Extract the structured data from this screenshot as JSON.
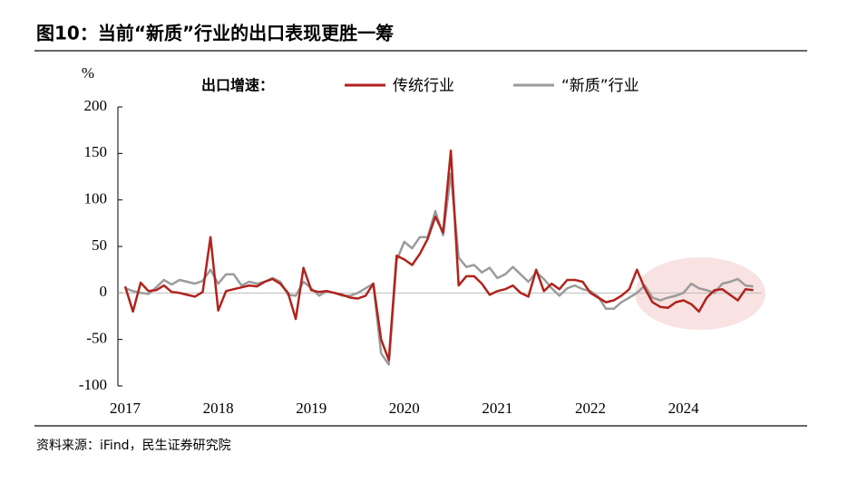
{
  "chart_data": {
    "type": "line",
    "title": "图10：当前“新质”行业的出口表现更胜一筹",
    "y_unit": "%",
    "legend_title": "出口增速：",
    "source": "资料来源：iFind，民生证券研究院",
    "categories": [
      "2017",
      null,
      null,
      null,
      null,
      null,
      null,
      null,
      null,
      null,
      null,
      null,
      "2018",
      null,
      null,
      null,
      null,
      null,
      null,
      null,
      null,
      null,
      null,
      null,
      "2019",
      null,
      null,
      null,
      null,
      null,
      null,
      null,
      null,
      null,
      null,
      null,
      "2020",
      null,
      null,
      null,
      null,
      null,
      null,
      null,
      null,
      null,
      null,
      null,
      "2021",
      null,
      null,
      null,
      null,
      null,
      null,
      null,
      null,
      null,
      null,
      null,
      "2022",
      null,
      null,
      null,
      null,
      null,
      null,
      null,
      null,
      null,
      null,
      null,
      "2024",
      null,
      null,
      null,
      null,
      null,
      null,
      null,
      null,
      null
    ],
    "series": [
      {
        "name": "传统行业",
        "color": "#b0231c",
        "values": [
          7,
          -20,
          11,
          2,
          3,
          8,
          1,
          0,
          -2,
          -4,
          1,
          60,
          -19,
          2,
          4,
          6,
          8,
          7,
          12,
          15,
          10,
          0,
          -28,
          27,
          3,
          1,
          2,
          0,
          -2,
          -5,
          -6,
          -3,
          10,
          -50,
          -72,
          40,
          36,
          30,
          42,
          58,
          82,
          65,
          153,
          8,
          18,
          18,
          10,
          -2,
          2,
          4,
          8,
          0,
          -4,
          25,
          2,
          10,
          4,
          14,
          14,
          12,
          0,
          -5,
          -10,
          -8,
          -3,
          4,
          25,
          5,
          -10,
          -15,
          -16,
          -10,
          -8,
          -12,
          -20,
          -5,
          3,
          4,
          -2,
          -8,
          4,
          3
        ]
      },
      {
        "name": "“新质”行业",
        "color": "#9b9b9b",
        "values": [
          5,
          2,
          0,
          -1,
          6,
          14,
          9,
          14,
          12,
          10,
          13,
          25,
          10,
          20,
          20,
          8,
          12,
          10,
          12,
          16,
          12,
          -2,
          -3,
          12,
          5,
          -3,
          2,
          0,
          -3,
          -3,
          0,
          5,
          10,
          -65,
          -77,
          35,
          55,
          48,
          60,
          60,
          88,
          62,
          128,
          38,
          28,
          30,
          22,
          27,
          16,
          20,
          28,
          20,
          12,
          22,
          15,
          5,
          -3,
          5,
          8,
          4,
          2,
          -4,
          -17,
          -17,
          -10,
          -5,
          0,
          8,
          -5,
          -8,
          -5,
          -3,
          0,
          10,
          5,
          3,
          0,
          10,
          12,
          15,
          8,
          7
        ]
      }
    ],
    "ylim": [
      -100,
      200
    ],
    "yticks": [
      -100,
      -50,
      0,
      50,
      100,
      150,
      200
    ],
    "grid": false
  }
}
